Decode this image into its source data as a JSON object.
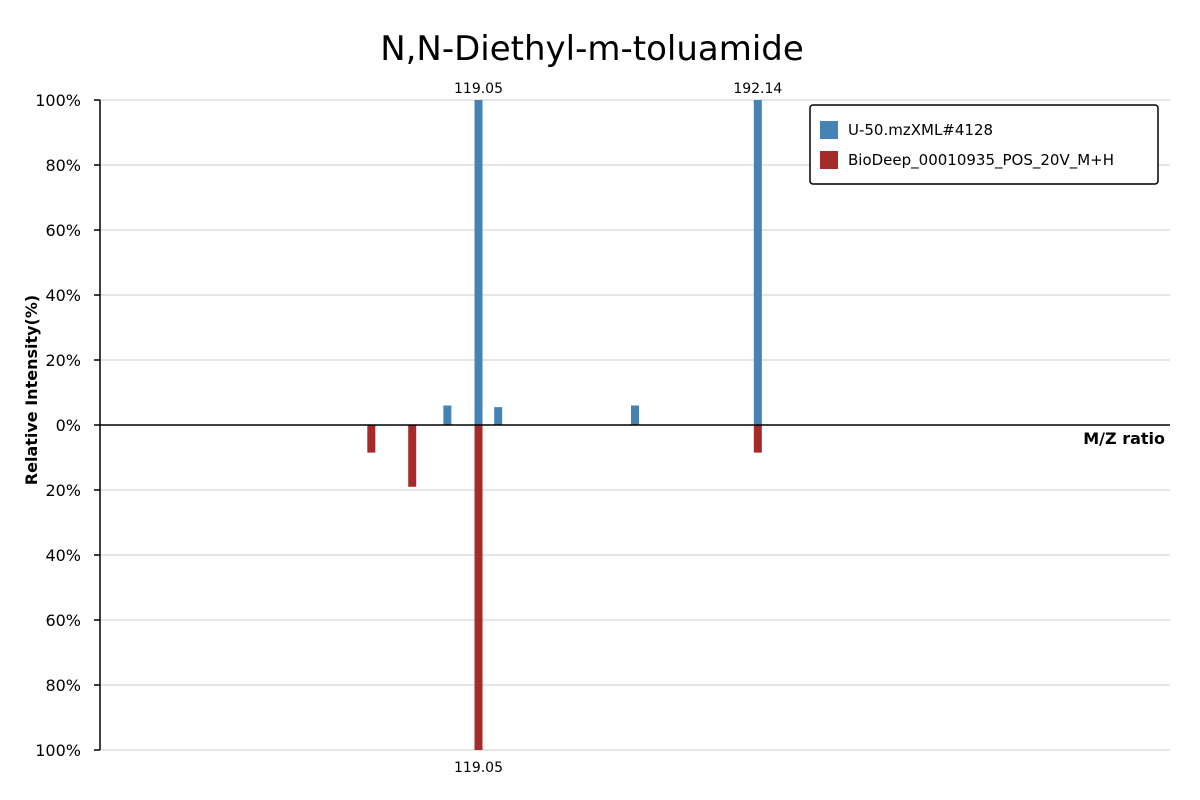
{
  "chart_data": {
    "type": "bar",
    "title": "N,N-Diethyl-m-toluamide",
    "ylabel": "Relative Intensity(%)",
    "xlabel": "M/Z ratio",
    "ylim": [
      -100,
      100
    ],
    "xlim": [
      20,
      300
    ],
    "grid": true,
    "legend_position": "top-right",
    "y_ticks": [
      {
        "value": 100,
        "label": "100%"
      },
      {
        "value": 80,
        "label": "80%"
      },
      {
        "value": 60,
        "label": "60%"
      },
      {
        "value": 40,
        "label": "40%"
      },
      {
        "value": 20,
        "label": "20%"
      },
      {
        "value": 0,
        "label": "0%"
      },
      {
        "value": -20,
        "label": "20%"
      },
      {
        "value": -40,
        "label": "40%"
      },
      {
        "value": -60,
        "label": "60%"
      },
      {
        "value": -80,
        "label": "80%"
      },
      {
        "value": -100,
        "label": "100%"
      }
    ],
    "series": [
      {
        "name": "U-50.mzXML#4128",
        "color": "#4682b4",
        "direction": "up",
        "peaks": [
          {
            "mz": 110.9,
            "intensity": 6
          },
          {
            "mz": 119.05,
            "intensity": 100,
            "label": "119.05"
          },
          {
            "mz": 124.2,
            "intensity": 5.5
          },
          {
            "mz": 160.0,
            "intensity": 6
          },
          {
            "mz": 192.14,
            "intensity": 100,
            "label": "192.14"
          }
        ]
      },
      {
        "name": "BioDeep_00010935_POS_20V_M+H",
        "color": "#a52a2a",
        "direction": "down",
        "peaks": [
          {
            "mz": 91.0,
            "intensity": 8.5
          },
          {
            "mz": 101.7,
            "intensity": 19
          },
          {
            "mz": 119.05,
            "intensity": 100,
            "label": "119.05"
          },
          {
            "mz": 192.14,
            "intensity": 8.5
          }
        ]
      }
    ]
  }
}
